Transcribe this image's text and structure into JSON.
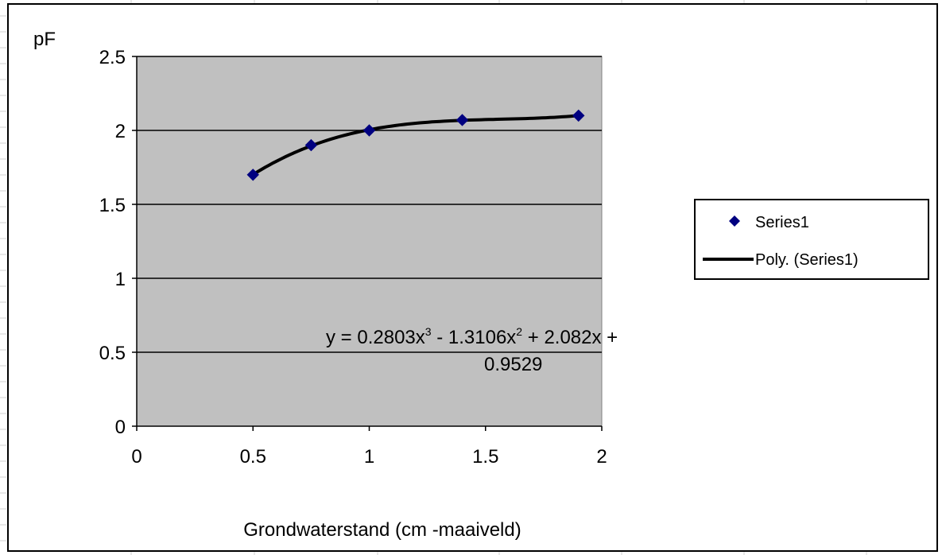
{
  "colors": {
    "plot_area": "#c0c0c0",
    "marker": "#000080",
    "trendline": "#000000",
    "gridline": "#000000",
    "sheet_grid": "#d0d0d0"
  },
  "chart_data": {
    "type": "scatter",
    "title": "",
    "xlabel": "Grondwaterstand  (cm -maaiveld)",
    "ylabel": "pF",
    "xlim": [
      0,
      2
    ],
    "ylim": [
      0,
      2.5
    ],
    "x_ticks": [
      "0",
      "0.5",
      "1",
      "1.5",
      "2"
    ],
    "y_ticks": [
      "0",
      "0.5",
      "1",
      "1.5",
      "2",
      "2.5"
    ],
    "grid": "horizontal major gridlines",
    "legend_position": "right",
    "series": [
      {
        "name": "Series1",
        "marker": "diamond",
        "x": [
          0.5,
          0.75,
          1.0,
          1.4,
          1.9
        ],
        "y": [
          1.7,
          1.9,
          2.0,
          2.07,
          2.1
        ]
      }
    ],
    "trendline": {
      "name": "Poly. (Series1)",
      "type": "polynomial",
      "order": 3,
      "coefficients": [
        0.2803,
        -1.3106,
        2.082,
        0.9529
      ],
      "x_range": [
        0.5,
        1.9
      ],
      "equation_line1_parts": [
        "y = 0.2803x",
        "3",
        " - 1.3106x",
        "2",
        " + 2.082x +"
      ],
      "equation_line2": "0.9529"
    }
  }
}
